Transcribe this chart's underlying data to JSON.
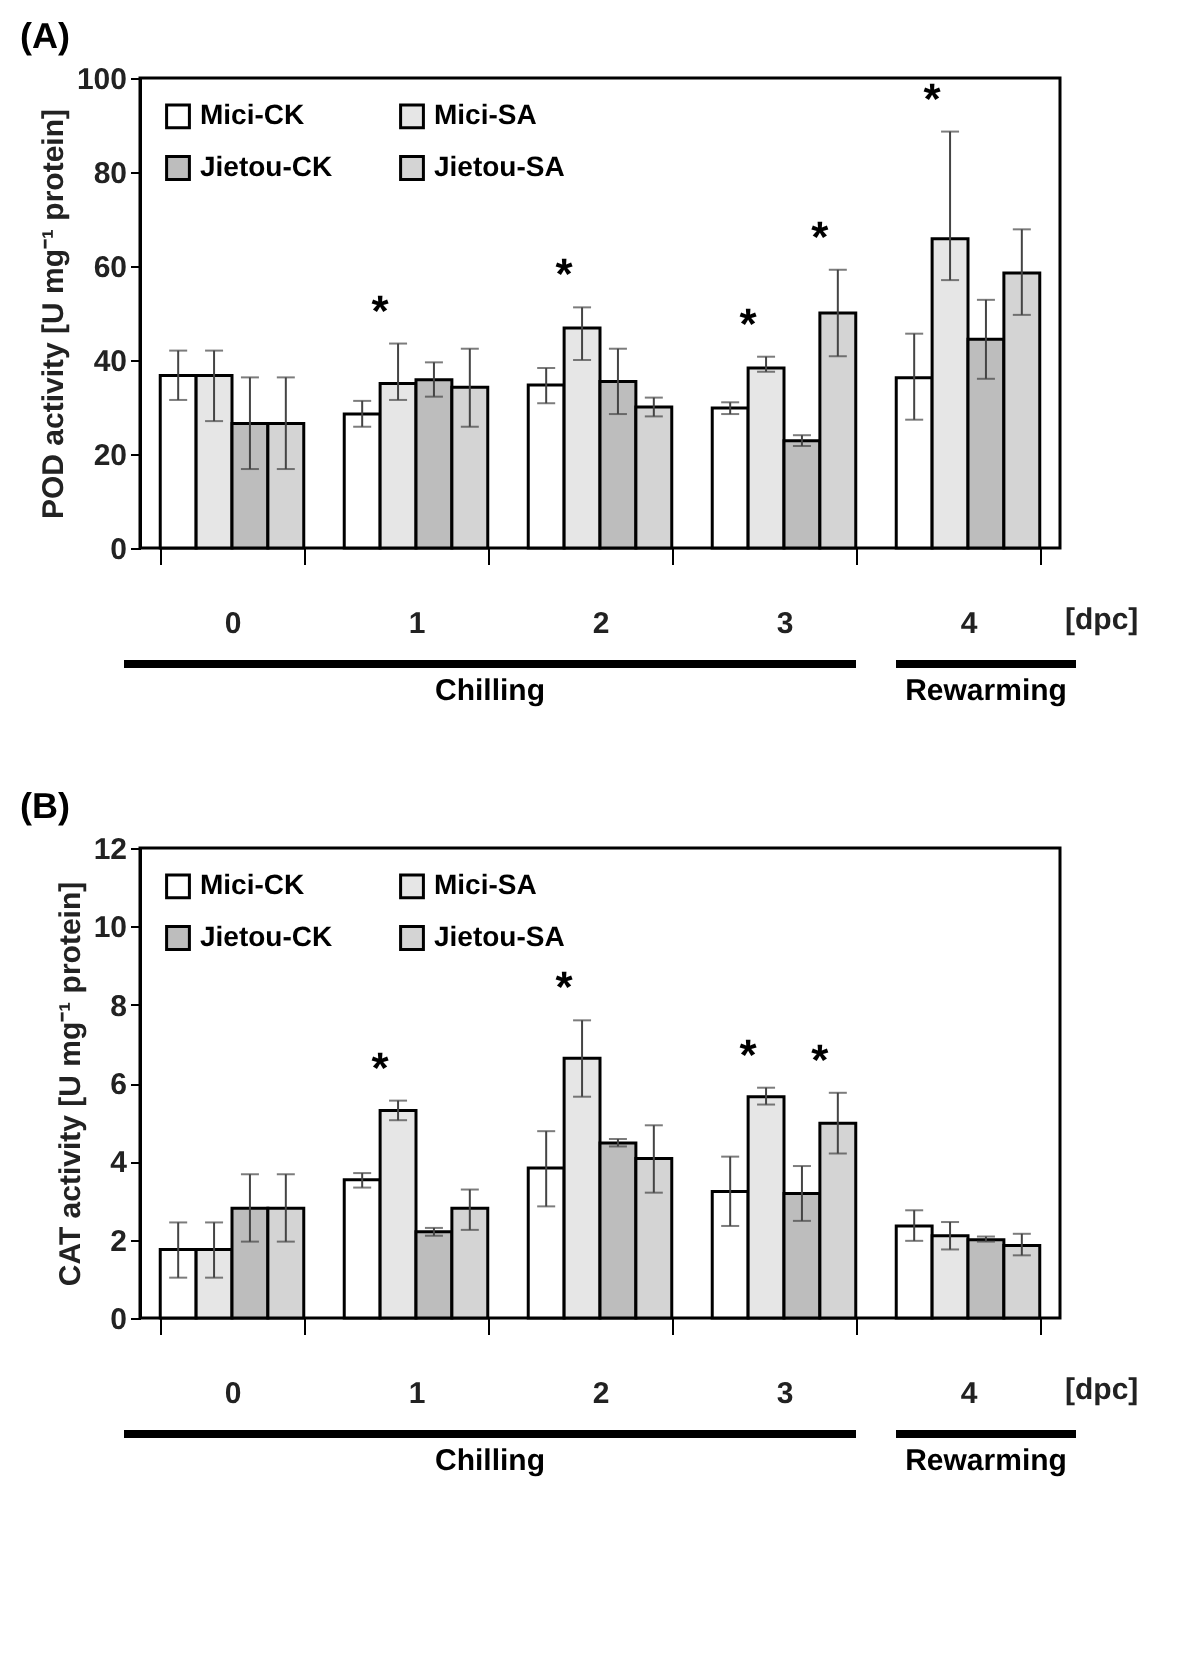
{
  "chart_data": [
    {
      "type": "bar",
      "title": "(A)",
      "xlabel": "[dpc]",
      "ylabel": "POD activity  [U mg⁻¹ protein]",
      "categories": [
        "0",
        "1",
        "2",
        "3",
        "4"
      ],
      "ylim": [
        0,
        100
      ],
      "yticks": [
        0,
        20,
        40,
        60,
        80,
        100
      ],
      "grid": false,
      "legend": "top left",
      "series": [
        {
          "name": "Mici-CK",
          "color": "#ffffff",
          "values": [
            36.7,
            28.5,
            34.7,
            29.8,
            36.2
          ],
          "errors": [
            [
              31.5,
              42
            ],
            [
              25.8,
              31.3
            ],
            [
              30.8,
              38.3
            ],
            [
              28.5,
              31
            ],
            [
              27.3,
              45.6
            ]
          ]
        },
        {
          "name": "Mici-SA",
          "color": "#e6e6e6",
          "values": [
            36.7,
            35,
            46.8,
            38.3,
            65.8
          ],
          "errors": [
            [
              27,
              42
            ],
            [
              31.5,
              43.5
            ],
            [
              40,
              51.2
            ],
            [
              37.5,
              40.7
            ],
            [
              57,
              88.6
            ]
          ]
        },
        {
          "name": "Jietou-CK",
          "color": "#bdbdbd",
          "values": [
            26.5,
            35.8,
            35.4,
            22.8,
            44.4
          ],
          "errors": [
            [
              16.8,
              36.3
            ],
            [
              32.2,
              39.5
            ],
            [
              28.5,
              42.4
            ],
            [
              21.7,
              24
            ],
            [
              36,
              52.8
            ]
          ]
        },
        {
          "name": "Jietou-SA",
          "color": "#d4d4d4",
          "values": [
            26.5,
            34.2,
            30,
            50,
            58.5
          ],
          "errors": [
            [
              16.8,
              36.3
            ],
            [
              25.8,
              42.4
            ],
            [
              28,
              32
            ],
            [
              40.8,
              59.2
            ],
            [
              49.6,
              67.8
            ]
          ]
        }
      ],
      "annotations": [
        "*",
        "*",
        "*",
        "*",
        "*",
        "Chilling",
        "Rewarming"
      ]
    },
    {
      "type": "bar",
      "title": "(B)",
      "xlabel": "[dpc]",
      "ylabel": "CAT activity [U mg⁻¹ protein]",
      "categories": [
        "0",
        "1",
        "2",
        "3",
        "4"
      ],
      "ylim": [
        0,
        12
      ],
      "yticks": [
        0,
        2,
        4,
        6,
        8,
        10,
        12
      ],
      "grid": false,
      "legend": "top left",
      "series": [
        {
          "name": "Mici-CK",
          "color": "#ffffff",
          "values": [
            1.75,
            3.53,
            3.83,
            3.23,
            2.35
          ],
          "errors": [
            [
              1.03,
              2.44
            ],
            [
              3.33,
              3.7
            ],
            [
              2.85,
              4.77
            ],
            [
              2.35,
              4.12
            ],
            [
              1.97,
              2.75
            ]
          ]
        },
        {
          "name": "Mici-SA",
          "color": "#e6e6e6",
          "values": [
            1.75,
            5.3,
            6.63,
            5.65,
            2.1
          ],
          "errors": [
            [
              1.03,
              2.44
            ],
            [
              5.05,
              5.55
            ],
            [
              5.65,
              7.6
            ],
            [
              5.45,
              5.88
            ],
            [
              1.75,
              2.45
            ]
          ]
        },
        {
          "name": "Jietou-CK",
          "color": "#bdbdbd",
          "values": [
            2.8,
            2.2,
            4.47,
            3.18,
            2.0
          ],
          "errors": [
            [
              1.95,
              3.67
            ],
            [
              2.1,
              2.3
            ],
            [
              4.38,
              4.57
            ],
            [
              2.48,
              3.88
            ],
            [
              1.95,
              2.08
            ]
          ]
        },
        {
          "name": "Jietou-SA",
          "color": "#d4d4d4",
          "values": [
            2.8,
            2.8,
            4.07,
            4.97,
            1.85
          ],
          "errors": [
            [
              1.95,
              3.67
            ],
            [
              2.25,
              3.28
            ],
            [
              3.2,
              4.92
            ],
            [
              4.2,
              5.75
            ],
            [
              1.6,
              2.15
            ]
          ]
        }
      ],
      "annotations": [
        "*",
        "*",
        "*",
        "*",
        "Chilling",
        "Rewarming"
      ]
    }
  ]
}
